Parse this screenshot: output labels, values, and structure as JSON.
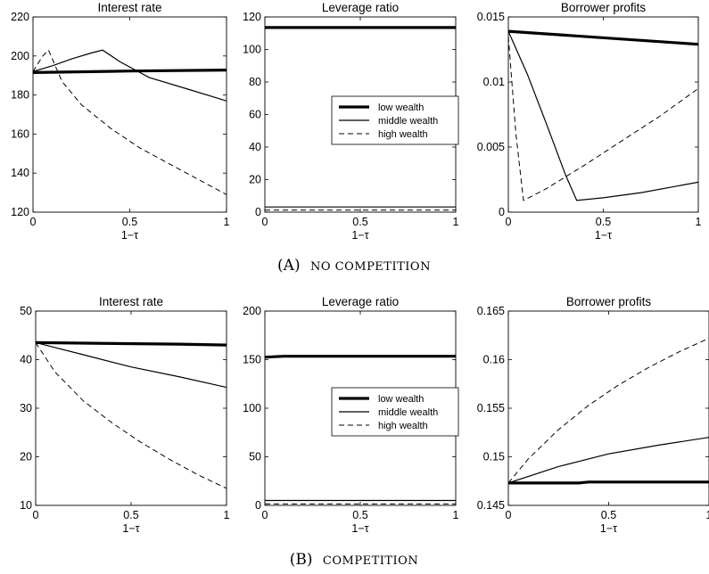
{
  "figure": {
    "caption_a": {
      "label": "(A)",
      "text": "No competition"
    },
    "caption_b": {
      "label": "(B)",
      "text": "Competition"
    }
  },
  "chart_data": [
    {
      "type": "line",
      "panel": "A-1",
      "title": "Interest rate",
      "xlabel": "1−τ",
      "ylabel": "",
      "xlim": [
        0,
        1
      ],
      "ylim": [
        120,
        220
      ],
      "xticks": [
        {
          "v": 0,
          "label": "0"
        },
        {
          "v": 0.5,
          "label": "0.5"
        },
        {
          "v": 1,
          "label": "1"
        }
      ],
      "yticks": [
        {
          "v": 120,
          "label": "120"
        },
        {
          "v": 140,
          "label": "140"
        },
        {
          "v": 160,
          "label": "160"
        },
        {
          "v": 180,
          "label": "180"
        },
        {
          "v": 200,
          "label": "200"
        },
        {
          "v": 220,
          "label": "220"
        }
      ],
      "series": [
        {
          "name": "low wealth",
          "style": "thick",
          "x": [
            0,
            0.5,
            1
          ],
          "y": [
            191.5,
            192.3,
            192.8
          ]
        },
        {
          "name": "middle wealth",
          "style": "thin",
          "x": [
            0,
            0.1,
            0.2,
            0.3,
            0.36,
            0.45,
            0.6,
            0.8,
            1
          ],
          "y": [
            192,
            195,
            198.5,
            201.5,
            203,
            197,
            189,
            183,
            177
          ]
        },
        {
          "name": "high wealth",
          "style": "dashed",
          "x": [
            0,
            0.05,
            0.08,
            0.15,
            0.25,
            0.4,
            0.55,
            0.7,
            0.85,
            1
          ],
          "y": [
            192,
            200,
            203,
            187,
            175,
            163,
            153,
            145,
            137,
            129
          ]
        }
      ]
    },
    {
      "type": "line",
      "panel": "A-2",
      "title": "Leverage ratio",
      "xlabel": "1−τ",
      "ylabel": "",
      "xlim": [
        0,
        1
      ],
      "ylim": [
        0,
        120
      ],
      "xticks": [
        {
          "v": 0,
          "label": "0"
        },
        {
          "v": 0.5,
          "label": "0.5"
        },
        {
          "v": 1,
          "label": "1"
        }
      ],
      "yticks": [
        {
          "v": 0,
          "label": "0"
        },
        {
          "v": 20,
          "label": "20"
        },
        {
          "v": 40,
          "label": "40"
        },
        {
          "v": 60,
          "label": "60"
        },
        {
          "v": 80,
          "label": "80"
        },
        {
          "v": 100,
          "label": "100"
        },
        {
          "v": 120,
          "label": "120"
        }
      ],
      "legend": {
        "position": "center-right",
        "entries": [
          {
            "name": "low wealth",
            "style": "thick"
          },
          {
            "name": "middle wealth",
            "style": "thin"
          },
          {
            "name": "high wealth",
            "style": "dashed"
          }
        ]
      },
      "series": [
        {
          "name": "low wealth",
          "style": "thick",
          "x": [
            0,
            1
          ],
          "y": [
            113.5,
            113.5
          ]
        },
        {
          "name": "middle wealth",
          "style": "thin",
          "x": [
            0,
            1
          ],
          "y": [
            3.2,
            3.2
          ]
        },
        {
          "name": "high wealth",
          "style": "dashed",
          "x": [
            0,
            1
          ],
          "y": [
            1.2,
            1.2
          ]
        }
      ]
    },
    {
      "type": "line",
      "panel": "A-3",
      "title": "Borrower profits",
      "xlabel": "1−τ",
      "ylabel": "",
      "xlim": [
        0,
        1
      ],
      "ylim": [
        0,
        0.015
      ],
      "xticks": [
        {
          "v": 0,
          "label": "0"
        },
        {
          "v": 0.5,
          "label": "0.5"
        },
        {
          "v": 1,
          "label": "1"
        }
      ],
      "yticks": [
        {
          "v": 0,
          "label": "0"
        },
        {
          "v": 0.005,
          "label": "0.005"
        },
        {
          "v": 0.01,
          "label": "0.01"
        },
        {
          "v": 0.015,
          "label": "0.015"
        }
      ],
      "series": [
        {
          "name": "low wealth",
          "style": "thick",
          "x": [
            0,
            1
          ],
          "y": [
            0.0139,
            0.0129
          ]
        },
        {
          "name": "middle wealth",
          "style": "thin",
          "x": [
            0,
            0.1,
            0.2,
            0.3,
            0.36,
            0.5,
            0.7,
            1
          ],
          "y": [
            0.0139,
            0.0106,
            0.0068,
            0.0029,
            0.0009,
            0.0011,
            0.0015,
            0.0023
          ]
        },
        {
          "name": "high wealth",
          "style": "dashed",
          "x": [
            0,
            0.04,
            0.08,
            0.2,
            0.4,
            0.6,
            0.8,
            1
          ],
          "y": [
            0.0135,
            0.006,
            0.0009,
            0.0018,
            0.0036,
            0.0055,
            0.0074,
            0.0095
          ]
        }
      ]
    },
    {
      "type": "line",
      "panel": "B-1",
      "title": "Interest rate",
      "xlabel": "1−τ",
      "ylabel": "",
      "xlim": [
        0,
        1
      ],
      "ylim": [
        10,
        50
      ],
      "xticks": [
        {
          "v": 0,
          "label": "0"
        },
        {
          "v": 0.5,
          "label": "0.5"
        },
        {
          "v": 1,
          "label": "1"
        }
      ],
      "yticks": [
        {
          "v": 10,
          "label": "10"
        },
        {
          "v": 20,
          "label": "20"
        },
        {
          "v": 30,
          "label": "30"
        },
        {
          "v": 40,
          "label": "40"
        },
        {
          "v": 50,
          "label": "50"
        }
      ],
      "series": [
        {
          "name": "low wealth",
          "style": "thick",
          "x": [
            0,
            0.25,
            0.75,
            1
          ],
          "y": [
            43.5,
            43.4,
            43.2,
            43.0
          ]
        },
        {
          "name": "middle wealth",
          "style": "thin",
          "x": [
            0,
            0.25,
            0.5,
            0.75,
            1
          ],
          "y": [
            43.5,
            41,
            38.5,
            36.5,
            34.3
          ]
        },
        {
          "name": "high wealth",
          "style": "dashed",
          "x": [
            0,
            0.1,
            0.25,
            0.4,
            0.55,
            0.7,
            0.85,
            1
          ],
          "y": [
            43.5,
            37.5,
            31.5,
            27,
            23,
            19.5,
            16.3,
            13.5
          ]
        }
      ]
    },
    {
      "type": "line",
      "panel": "B-2",
      "title": "Leverage ratio",
      "xlabel": "1−τ",
      "ylabel": "",
      "xlim": [
        0,
        1
      ],
      "ylim": [
        0,
        200
      ],
      "xticks": [
        {
          "v": 0,
          "label": "0"
        },
        {
          "v": 0.5,
          "label": "0.5"
        },
        {
          "v": 1,
          "label": "1"
        }
      ],
      "yticks": [
        {
          "v": 0,
          "label": "0"
        },
        {
          "v": 50,
          "label": "50"
        },
        {
          "v": 100,
          "label": "100"
        },
        {
          "v": 150,
          "label": "150"
        },
        {
          "v": 200,
          "label": "200"
        }
      ],
      "legend": {
        "position": "center-right",
        "entries": [
          {
            "name": "low wealth",
            "style": "thick"
          },
          {
            "name": "middle wealth",
            "style": "thin"
          },
          {
            "name": "high wealth",
            "style": "dashed"
          }
        ]
      },
      "series": [
        {
          "name": "low wealth",
          "style": "thick",
          "x": [
            0,
            0.05,
            0.1,
            1
          ],
          "y": [
            152.5,
            153,
            153.5,
            153.5
          ]
        },
        {
          "name": "middle wealth",
          "style": "thin",
          "x": [
            0,
            1
          ],
          "y": [
            5,
            5
          ]
        },
        {
          "name": "high wealth",
          "style": "dashed",
          "x": [
            0,
            1
          ],
          "y": [
            1.5,
            1.5
          ]
        }
      ]
    },
    {
      "type": "line",
      "panel": "B-3",
      "title": "Borrower profits",
      "xlabel": "1−τ",
      "ylabel": "",
      "xlim": [
        0,
        1
      ],
      "ylim": [
        0.145,
        0.165
      ],
      "xticks": [
        {
          "v": 0,
          "label": "0"
        },
        {
          "v": 0.5,
          "label": "0.5"
        },
        {
          "v": 1,
          "label": "1"
        }
      ],
      "yticks": [
        {
          "v": 0.145,
          "label": "0.145"
        },
        {
          "v": 0.15,
          "label": "0.15"
        },
        {
          "v": 0.155,
          "label": "0.155"
        },
        {
          "v": 0.16,
          "label": "0.16"
        },
        {
          "v": 0.165,
          "label": "0.165"
        }
      ],
      "series": [
        {
          "name": "low wealth",
          "style": "thick",
          "x": [
            0,
            0.35,
            0.4,
            1
          ],
          "y": [
            0.1473,
            0.1473,
            0.1474,
            0.1474
          ]
        },
        {
          "name": "middle wealth",
          "style": "thin",
          "x": [
            0,
            0.25,
            0.5,
            0.75,
            1
          ],
          "y": [
            0.1473,
            0.149,
            0.1503,
            0.1512,
            0.152
          ]
        },
        {
          "name": "high wealth",
          "style": "dashed",
          "x": [
            0,
            0.1,
            0.25,
            0.4,
            0.55,
            0.7,
            0.85,
            1
          ],
          "y": [
            0.1473,
            0.1498,
            0.1528,
            0.1553,
            0.1574,
            0.1592,
            0.1608,
            0.1622
          ]
        }
      ]
    }
  ]
}
